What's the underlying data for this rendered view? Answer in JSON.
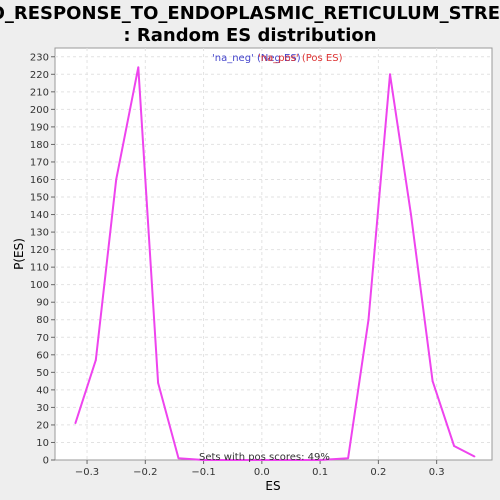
{
  "chart_data": {
    "type": "line",
    "title_line1": "GO_RESPONSE_TO_ENDOPLASMIC_RETICULUM_STRESS",
    "title_line2": ": Random ES distribution",
    "xlabel": "ES",
    "ylabel": "P(ES)",
    "xlim": [
      -0.355,
      0.395
    ],
    "ylim": [
      0,
      235
    ],
    "x_ticks": [
      -0.3,
      -0.2,
      -0.1,
      0.0,
      0.1,
      0.2,
      0.3
    ],
    "x_tick_labels": [
      "−0.3",
      "−0.2",
      "−0.1",
      "0.0",
      "0.1",
      "0.2",
      "0.3"
    ],
    "y_ticks": [
      0,
      10,
      20,
      30,
      40,
      50,
      60,
      70,
      80,
      90,
      100,
      110,
      120,
      130,
      140,
      150,
      160,
      170,
      180,
      190,
      200,
      210,
      220,
      230
    ],
    "grid": true,
    "legend": [
      {
        "label": "'na_neg' (Neg ES)",
        "color": "#4444cc"
      },
      {
        "label": "'na_pos' (Pos ES)",
        "color": "#dd3333"
      }
    ],
    "annotation": "Sets with pos scores: 49%",
    "series": [
      {
        "color": "#ee44ee",
        "points": [
          [
            -0.32,
            21
          ],
          [
            -0.285,
            57
          ],
          [
            -0.25,
            160
          ],
          [
            -0.212,
            224
          ],
          [
            -0.178,
            44
          ],
          [
            -0.143,
            1
          ],
          [
            -0.1,
            0
          ],
          [
            0.0,
            0
          ],
          [
            0.1,
            0
          ],
          [
            0.148,
            1
          ],
          [
            0.183,
            80
          ],
          [
            0.22,
            220
          ],
          [
            0.256,
            140
          ],
          [
            0.293,
            45
          ],
          [
            0.33,
            8
          ],
          [
            0.365,
            2
          ]
        ]
      }
    ]
  }
}
